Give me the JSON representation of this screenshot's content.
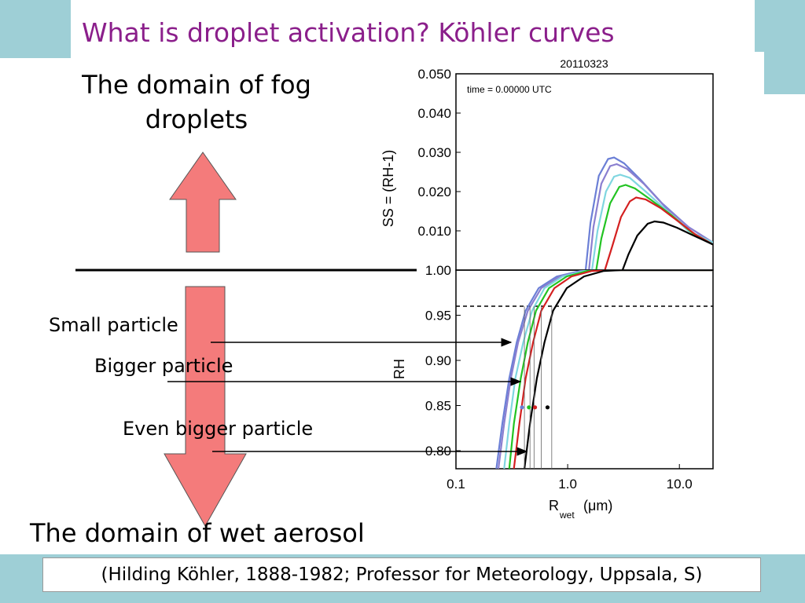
{
  "slide": {
    "title": "What is droplet activation? Köhler curves",
    "fog_domain_label": "The domain of fog droplets",
    "aerosol_domain_label": "The domain of wet aerosol",
    "particles": [
      {
        "label": "Small particle"
      },
      {
        "label": "Bigger particle"
      },
      {
        "label": "Even bigger particle"
      }
    ],
    "citation": "(Hilding Köhler, 1888-1982; Professor for Meteorology, Uppsala, S)",
    "colors": {
      "title": "#8b1f8b",
      "arrow_fill": "#f47b7b",
      "decoration": "#9ecfd6"
    }
  },
  "chart_data": [
    {
      "type": "line",
      "title": "20110323",
      "annotation": "time =  0.00000 UTC",
      "ylabel": "SS = (RH-1)",
      "x_scale": "log",
      "xlim": [
        0.1,
        20
      ],
      "ylim": [
        0,
        0.05
      ],
      "yticks": [
        "0.050",
        "0.040",
        "0.030",
        "0.020",
        "0.010"
      ],
      "series": [
        {
          "color": "#6b7fd6",
          "x": [
            1.45,
            1.6,
            1.9,
            2.3,
            2.6,
            3.2,
            4.5,
            7,
            12,
            20
          ],
          "y": [
            0.0,
            0.012,
            0.024,
            0.0283,
            0.0287,
            0.0272,
            0.023,
            0.017,
            0.011,
            0.007
          ]
        },
        {
          "color": "#8a7fd0",
          "x": [
            1.55,
            1.7,
            2.0,
            2.4,
            2.75,
            3.4,
            4.8,
            7.5,
            12,
            20
          ],
          "y": [
            0.0,
            0.011,
            0.022,
            0.0265,
            0.027,
            0.0258,
            0.022,
            0.016,
            0.011,
            0.007
          ]
        },
        {
          "color": "#7fd6e0",
          "x": [
            1.65,
            1.85,
            2.2,
            2.6,
            2.95,
            3.6,
            5,
            7.8,
            12,
            20
          ],
          "y": [
            0.0,
            0.01,
            0.02,
            0.0238,
            0.0243,
            0.0235,
            0.02,
            0.015,
            0.01,
            0.007
          ]
        },
        {
          "color": "#22c322",
          "x": [
            1.8,
            2.0,
            2.4,
            2.9,
            3.3,
            4.0,
            5.5,
            8.5,
            13,
            20
          ],
          "y": [
            0.0,
            0.008,
            0.017,
            0.0212,
            0.0217,
            0.0208,
            0.018,
            0.014,
            0.0095,
            0.0065
          ]
        },
        {
          "color": "#d42020",
          "x": [
            2.15,
            2.5,
            3.0,
            3.6,
            4.1,
            5.0,
            6.8,
            10,
            14,
            20
          ],
          "y": [
            0.0,
            0.006,
            0.0135,
            0.0175,
            0.0185,
            0.018,
            0.0158,
            0.0122,
            0.009,
            0.0065
          ]
        },
        {
          "color": "#000000",
          "x": [
            3.1,
            3.5,
            4.2,
            5.2,
            6.0,
            7.2,
            9.5,
            12.5,
            16,
            20
          ],
          "y": [
            0.0,
            0.004,
            0.0088,
            0.0118,
            0.0124,
            0.0121,
            0.0108,
            0.0092,
            0.0078,
            0.0065
          ]
        }
      ]
    },
    {
      "type": "line",
      "xlabel": "R",
      "xlabel_subscript": "wet",
      "xlabel_unit": "(μm)",
      "ylabel": "RH",
      "x_scale": "log",
      "xlim": [
        0.1,
        20
      ],
      "ylim": [
        0.78,
        1.0
      ],
      "xticks": [
        "0.1",
        "1.0",
        "10.0"
      ],
      "yticks": [
        "1.00",
        "0.95",
        "0.90",
        "0.85",
        "0.80"
      ],
      "reference_rh": 0.96,
      "series": [
        {
          "color": "#6b7fd6",
          "x": [
            0.23,
            0.26,
            0.3,
            0.35,
            0.42,
            0.55,
            0.8,
            1.3,
            2.0,
            20
          ],
          "y": [
            0.78,
            0.83,
            0.88,
            0.92,
            0.955,
            0.98,
            0.993,
            0.999,
            1.0,
            1.0
          ]
        },
        {
          "color": "#8a7fd0",
          "x": [
            0.24,
            0.27,
            0.31,
            0.36,
            0.44,
            0.58,
            0.85,
            1.35,
            2.05,
            20
          ],
          "y": [
            0.78,
            0.83,
            0.88,
            0.92,
            0.955,
            0.98,
            0.993,
            0.999,
            1.0,
            1.0
          ]
        },
        {
          "color": "#7fd6e0",
          "x": [
            0.27,
            0.3,
            0.34,
            0.4,
            0.48,
            0.62,
            0.9,
            1.4,
            2.1,
            20
          ],
          "y": [
            0.78,
            0.83,
            0.88,
            0.92,
            0.955,
            0.98,
            0.993,
            0.999,
            1.0,
            1.0
          ]
        },
        {
          "color": "#22c322",
          "x": [
            0.3,
            0.33,
            0.38,
            0.44,
            0.52,
            0.68,
            0.98,
            1.5,
            2.2,
            20
          ],
          "y": [
            0.78,
            0.83,
            0.88,
            0.92,
            0.955,
            0.98,
            0.993,
            0.999,
            1.0,
            1.0
          ]
        },
        {
          "color": "#d42020",
          "x": [
            0.33,
            0.37,
            0.42,
            0.49,
            0.58,
            0.76,
            1.08,
            1.65,
            2.4,
            20
          ],
          "y": [
            0.78,
            0.83,
            0.88,
            0.92,
            0.955,
            0.98,
            0.993,
            0.999,
            1.0,
            1.0
          ]
        },
        {
          "color": "#000000",
          "x": [
            0.41,
            0.46,
            0.53,
            0.62,
            0.74,
            0.98,
            1.4,
            2.1,
            3.0,
            20
          ],
          "y": [
            0.78,
            0.83,
            0.88,
            0.92,
            0.955,
            0.98,
            0.993,
            0.999,
            1.0,
            1.0
          ]
        }
      ],
      "markers": [
        {
          "color": "#6b7fd6",
          "x": 0.39,
          "y": 0.848
        },
        {
          "color": "#22c322",
          "x": 0.45,
          "y": 0.848
        },
        {
          "color": "#d42020",
          "x": 0.51,
          "y": 0.848
        },
        {
          "color": "#000000",
          "x": 0.66,
          "y": 0.848
        }
      ]
    }
  ]
}
